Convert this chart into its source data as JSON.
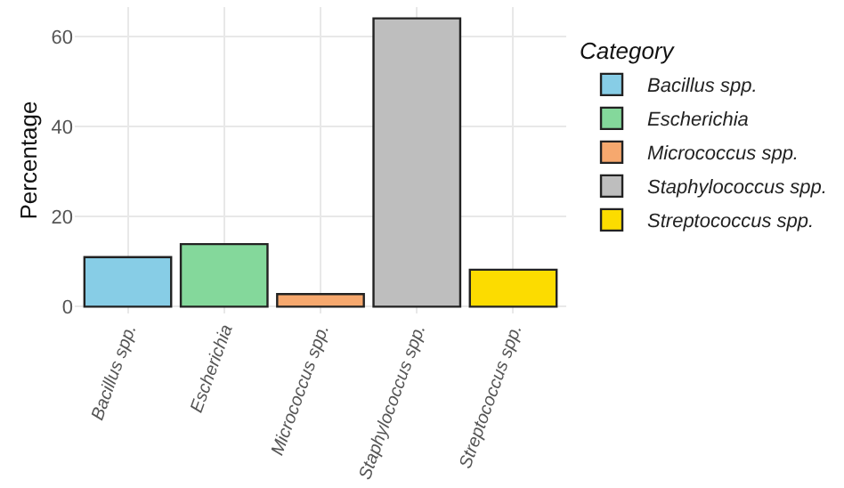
{
  "chart_data": {
    "type": "bar",
    "ylabel": "Percentage",
    "legend_title": "Category",
    "categories": [
      "Bacillus spp.",
      "Escherichia",
      "Micrococcus spp.",
      "Staphylococcus spp.",
      "Streptococcus spp."
    ],
    "series": [
      {
        "name": "Bacillus spp.",
        "color": "#87cde6",
        "values": [
          11.0,
          null,
          null,
          null,
          null
        ]
      },
      {
        "name": "Escherichia",
        "color": "#84d89b",
        "values": [
          null,
          13.9,
          null,
          null,
          null
        ]
      },
      {
        "name": "Micrococcus spp.",
        "color": "#f6a86e",
        "values": [
          null,
          null,
          2.8,
          null,
          null
        ]
      },
      {
        "name": "Staphylococcus spp.",
        "color": "#bebebe",
        "values": [
          null,
          null,
          null,
          64.0,
          null
        ]
      },
      {
        "name": "Streptococcus spp.",
        "color": "#fcdc00",
        "values": [
          null,
          null,
          null,
          null,
          8.2
        ]
      }
    ],
    "ylim": [
      -1.5,
      66.5
    ],
    "yticks": [
      0,
      20,
      40,
      60
    ],
    "grid": true,
    "legend": "right"
  }
}
